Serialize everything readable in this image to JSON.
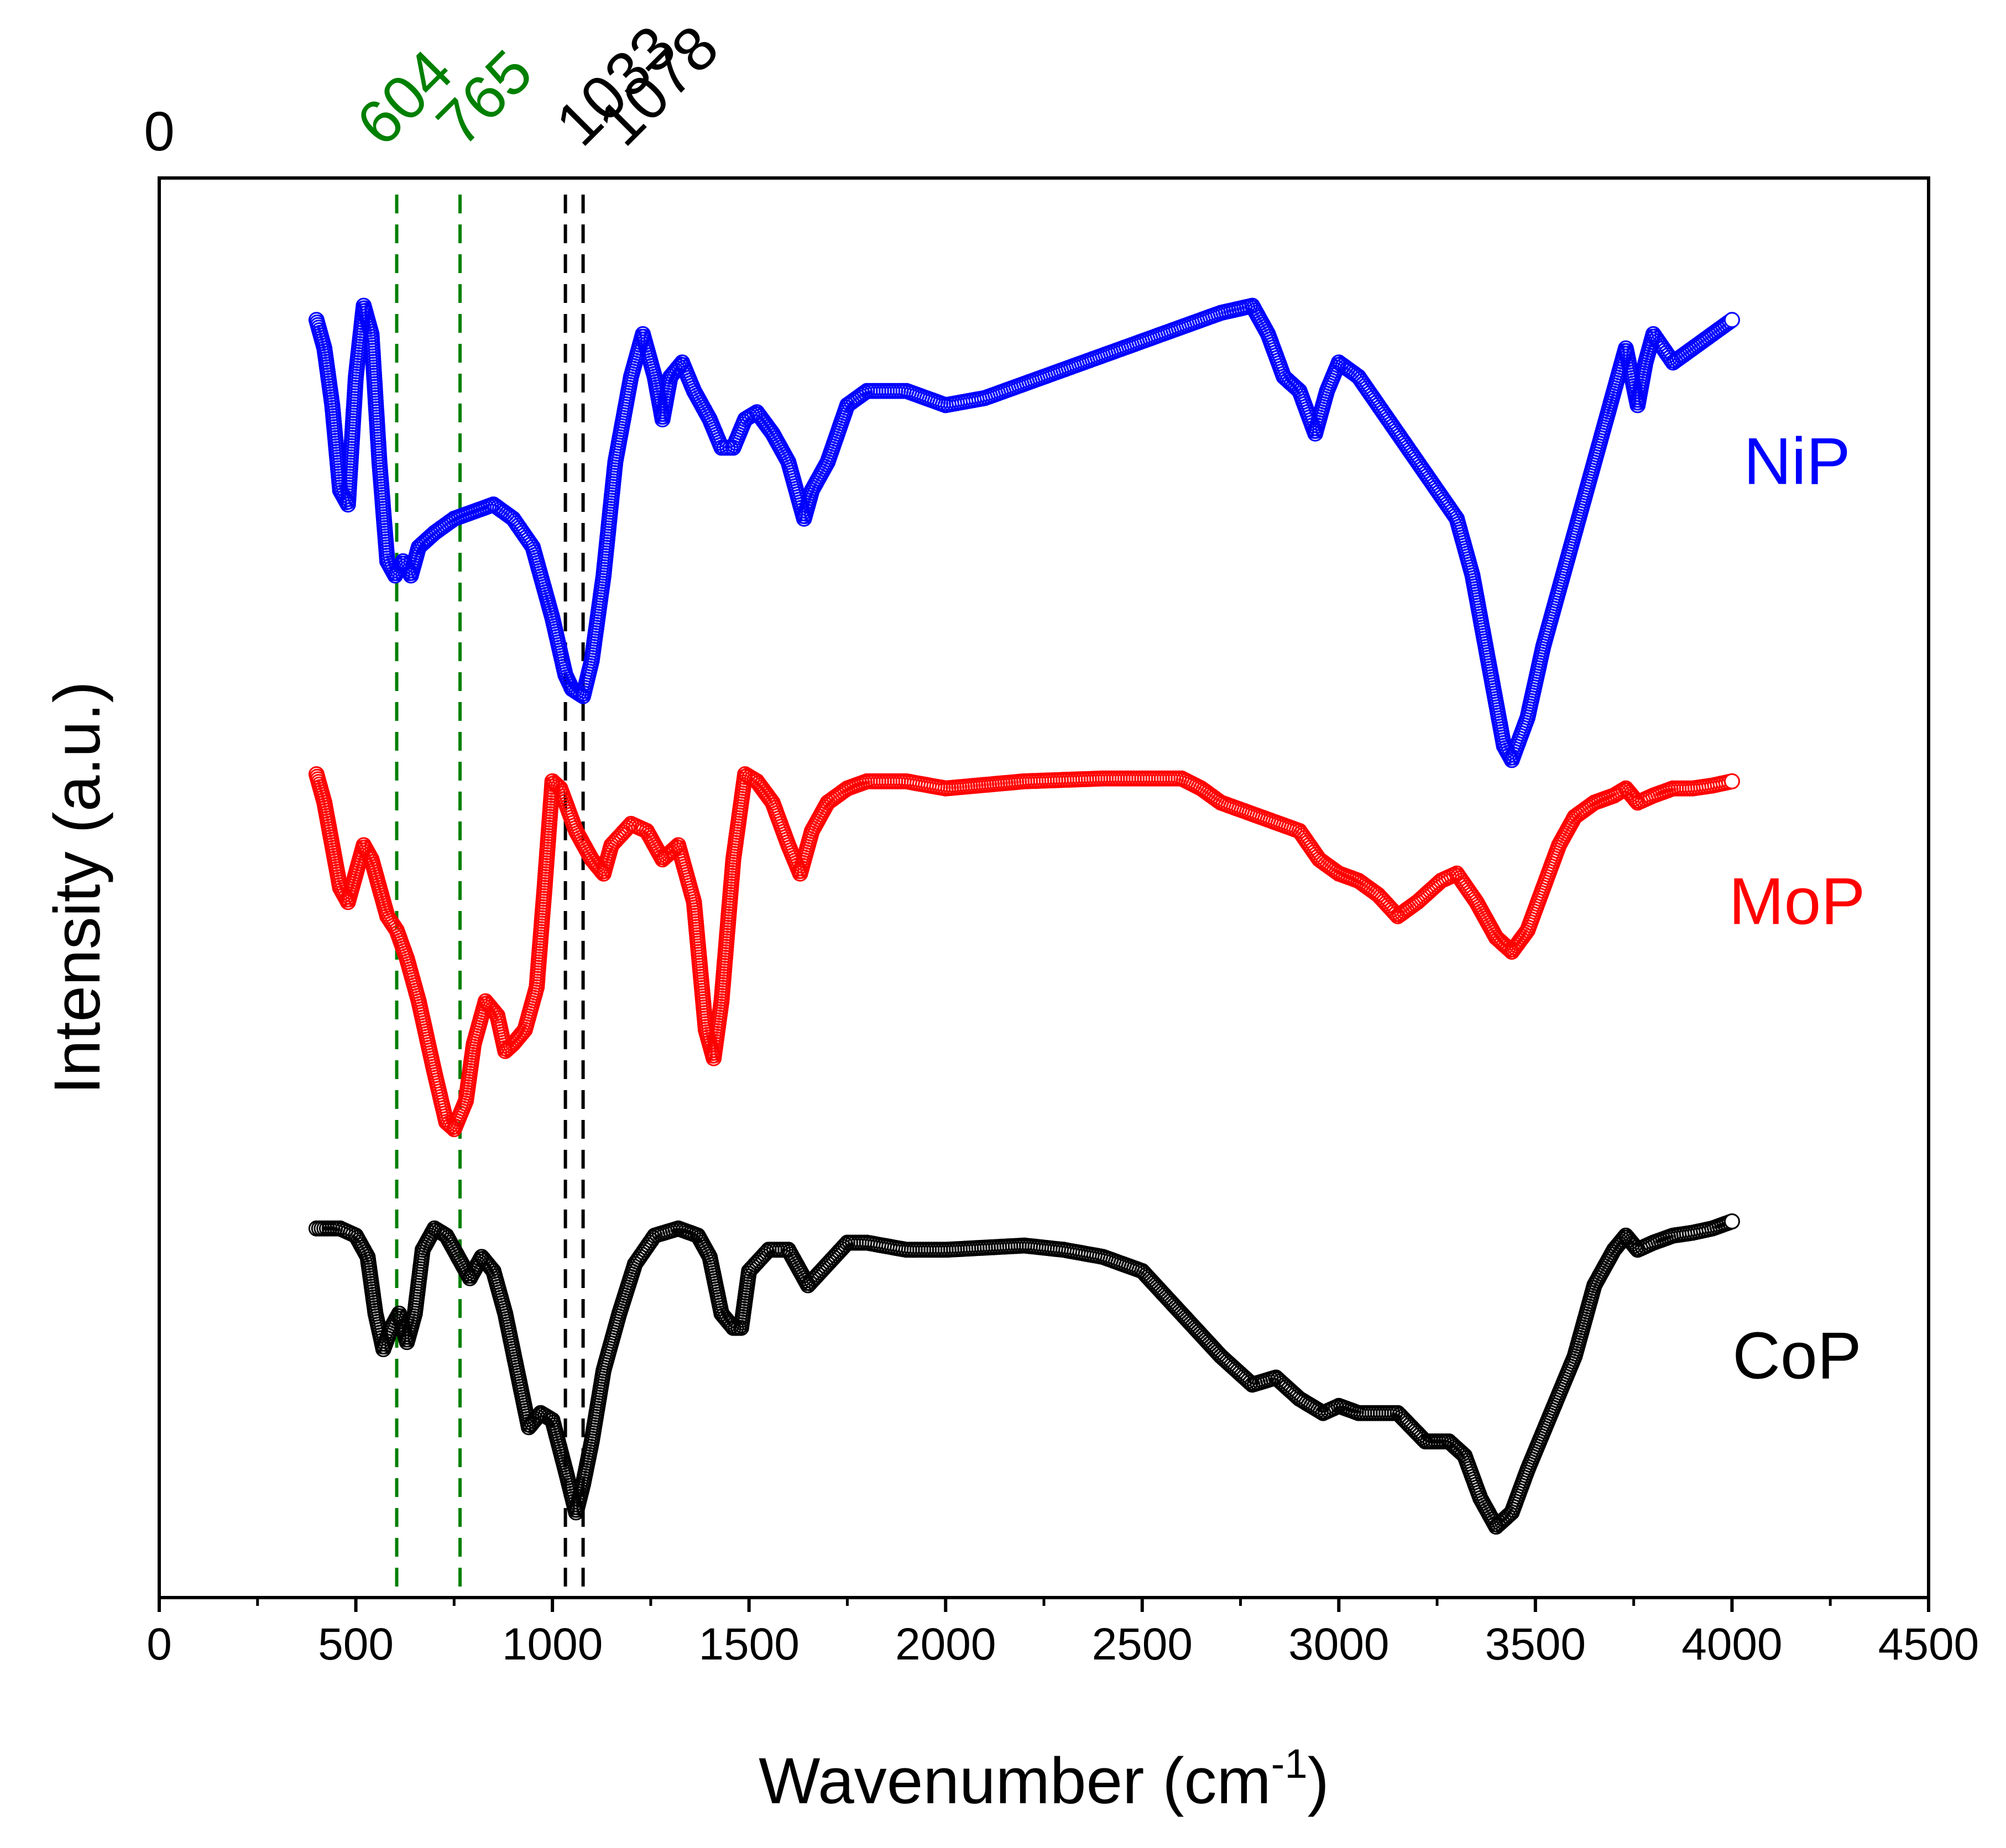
{
  "chart_data": {
    "type": "scatter",
    "title": "",
    "xlabel": "Wavenumber (cm",
    "xlabel_superscript": "-1",
    "xlabel_close": ")",
    "ylabel": "Intensity (a.u.)",
    "xlim": [
      0,
      4500
    ],
    "ylim": [
      0,
      1
    ],
    "xticks": [
      0,
      500,
      1000,
      1500,
      2000,
      2500,
      3000,
      3500,
      4000,
      4500
    ],
    "top_zero_label": "0",
    "grid": false,
    "legend": "labels placed at right of each curve",
    "series": [
      {
        "name": "NiP",
        "color": "#0000ff",
        "label_y": 0.8,
        "points": [
          [
            400,
            0.9
          ],
          [
            420,
            0.88
          ],
          [
            440,
            0.84
          ],
          [
            460,
            0.78
          ],
          [
            480,
            0.77
          ],
          [
            500,
            0.86
          ],
          [
            520,
            0.91
          ],
          [
            540,
            0.89
          ],
          [
            560,
            0.8
          ],
          [
            580,
            0.73
          ],
          [
            600,
            0.72
          ],
          [
            620,
            0.73
          ],
          [
            640,
            0.72
          ],
          [
            660,
            0.74
          ],
          [
            700,
            0.75
          ],
          [
            750,
            0.76
          ],
          [
            800,
            0.765
          ],
          [
            850,
            0.77
          ],
          [
            900,
            0.76
          ],
          [
            950,
            0.74
          ],
          [
            980,
            0.71
          ],
          [
            1000,
            0.69
          ],
          [
            1033,
            0.65
          ],
          [
            1050,
            0.64
          ],
          [
            1078,
            0.635
          ],
          [
            1100,
            0.66
          ],
          [
            1130,
            0.72
          ],
          [
            1160,
            0.8
          ],
          [
            1200,
            0.86
          ],
          [
            1230,
            0.89
          ],
          [
            1260,
            0.86
          ],
          [
            1280,
            0.83
          ],
          [
            1300,
            0.86
          ],
          [
            1330,
            0.87
          ],
          [
            1360,
            0.85
          ],
          [
            1400,
            0.83
          ],
          [
            1430,
            0.81
          ],
          [
            1460,
            0.81
          ],
          [
            1490,
            0.83
          ],
          [
            1520,
            0.835
          ],
          [
            1560,
            0.82
          ],
          [
            1600,
            0.8
          ],
          [
            1640,
            0.76
          ],
          [
            1660,
            0.78
          ],
          [
            1700,
            0.8
          ],
          [
            1750,
            0.84
          ],
          [
            1800,
            0.85
          ],
          [
            1900,
            0.85
          ],
          [
            2000,
            0.84
          ],
          [
            2100,
            0.845
          ],
          [
            2200,
            0.855
          ],
          [
            2300,
            0.865
          ],
          [
            2400,
            0.875
          ],
          [
            2500,
            0.885
          ],
          [
            2600,
            0.895
          ],
          [
            2700,
            0.905
          ],
          [
            2780,
            0.91
          ],
          [
            2820,
            0.89
          ],
          [
            2860,
            0.86
          ],
          [
            2900,
            0.85
          ],
          [
            2940,
            0.82
          ],
          [
            2970,
            0.85
          ],
          [
            3000,
            0.87
          ],
          [
            3050,
            0.86
          ],
          [
            3100,
            0.84
          ],
          [
            3150,
            0.82
          ],
          [
            3200,
            0.8
          ],
          [
            3250,
            0.78
          ],
          [
            3300,
            0.76
          ],
          [
            3340,
            0.72
          ],
          [
            3380,
            0.66
          ],
          [
            3420,
            0.6
          ],
          [
            3440,
            0.59
          ],
          [
            3480,
            0.62
          ],
          [
            3520,
            0.67
          ],
          [
            3560,
            0.71
          ],
          [
            3600,
            0.75
          ],
          [
            3640,
            0.79
          ],
          [
            3680,
            0.83
          ],
          [
            3700,
            0.85
          ],
          [
            3730,
            0.88
          ],
          [
            3760,
            0.84
          ],
          [
            3780,
            0.87
          ],
          [
            3800,
            0.89
          ],
          [
            3850,
            0.87
          ],
          [
            3900,
            0.88
          ],
          [
            3950,
            0.89
          ],
          [
            4000,
            0.9
          ]
        ]
      },
      {
        "name": "MoP",
        "color": "#ff0000",
        "label_y": 0.49,
        "points": [
          [
            400,
            0.58
          ],
          [
            420,
            0.56
          ],
          [
            440,
            0.53
          ],
          [
            460,
            0.5
          ],
          [
            480,
            0.49
          ],
          [
            500,
            0.51
          ],
          [
            520,
            0.53
          ],
          [
            540,
            0.52
          ],
          [
            560,
            0.5
          ],
          [
            580,
            0.48
          ],
          [
            604,
            0.47
          ],
          [
            630,
            0.45
          ],
          [
            660,
            0.42
          ],
          [
            700,
            0.37
          ],
          [
            730,
            0.335
          ],
          [
            750,
            0.33
          ],
          [
            780,
            0.35
          ],
          [
            800,
            0.39
          ],
          [
            830,
            0.42
          ],
          [
            860,
            0.41
          ],
          [
            880,
            0.385
          ],
          [
            900,
            0.39
          ],
          [
            930,
            0.4
          ],
          [
            960,
            0.43
          ],
          [
            980,
            0.5
          ],
          [
            1000,
            0.575
          ],
          [
            1020,
            0.57
          ],
          [
            1060,
            0.54
          ],
          [
            1100,
            0.52
          ],
          [
            1130,
            0.51
          ],
          [
            1150,
            0.53
          ],
          [
            1200,
            0.545
          ],
          [
            1240,
            0.54
          ],
          [
            1280,
            0.52
          ],
          [
            1320,
            0.53
          ],
          [
            1360,
            0.49
          ],
          [
            1390,
            0.4
          ],
          [
            1410,
            0.38
          ],
          [
            1430,
            0.42
          ],
          [
            1460,
            0.52
          ],
          [
            1490,
            0.58
          ],
          [
            1520,
            0.575
          ],
          [
            1560,
            0.56
          ],
          [
            1600,
            0.53
          ],
          [
            1630,
            0.51
          ],
          [
            1660,
            0.54
          ],
          [
            1700,
            0.56
          ],
          [
            1750,
            0.57
          ],
          [
            1800,
            0.575
          ],
          [
            1900,
            0.575
          ],
          [
            2000,
            0.57
          ],
          [
            2200,
            0.575
          ],
          [
            2400,
            0.577
          ],
          [
            2600,
            0.577
          ],
          [
            2650,
            0.57
          ],
          [
            2700,
            0.56
          ],
          [
            2800,
            0.55
          ],
          [
            2900,
            0.54
          ],
          [
            2950,
            0.52
          ],
          [
            3000,
            0.51
          ],
          [
            3050,
            0.505
          ],
          [
            3100,
            0.495
          ],
          [
            3150,
            0.48
          ],
          [
            3200,
            0.49
          ],
          [
            3260,
            0.505
          ],
          [
            3300,
            0.51
          ],
          [
            3350,
            0.49
          ],
          [
            3400,
            0.465
          ],
          [
            3440,
            0.455
          ],
          [
            3480,
            0.47
          ],
          [
            3520,
            0.5
          ],
          [
            3560,
            0.53
          ],
          [
            3600,
            0.55
          ],
          [
            3650,
            0.56
          ],
          [
            3700,
            0.565
          ],
          [
            3730,
            0.57
          ],
          [
            3760,
            0.56
          ],
          [
            3800,
            0.565
          ],
          [
            3850,
            0.57
          ],
          [
            3900,
            0.57
          ],
          [
            3950,
            0.572
          ],
          [
            4000,
            0.575
          ]
        ]
      },
      {
        "name": "CoP",
        "color": "#000000",
        "label_y": 0.17,
        "points": [
          [
            400,
            0.26
          ],
          [
            420,
            0.26
          ],
          [
            460,
            0.26
          ],
          [
            500,
            0.255
          ],
          [
            530,
            0.24
          ],
          [
            550,
            0.2
          ],
          [
            570,
            0.175
          ],
          [
            590,
            0.19
          ],
          [
            610,
            0.2
          ],
          [
            630,
            0.18
          ],
          [
            650,
            0.2
          ],
          [
            670,
            0.245
          ],
          [
            700,
            0.26
          ],
          [
            730,
            0.255
          ],
          [
            760,
            0.24
          ],
          [
            790,
            0.225
          ],
          [
            820,
            0.24
          ],
          [
            850,
            0.23
          ],
          [
            880,
            0.2
          ],
          [
            910,
            0.16
          ],
          [
            940,
            0.12
          ],
          [
            970,
            0.13
          ],
          [
            1000,
            0.125
          ],
          [
            1033,
            0.09
          ],
          [
            1060,
            0.06
          ],
          [
            1078,
            0.08
          ],
          [
            1100,
            0.11
          ],
          [
            1130,
            0.16
          ],
          [
            1170,
            0.2
          ],
          [
            1210,
            0.235
          ],
          [
            1260,
            0.255
          ],
          [
            1320,
            0.26
          ],
          [
            1370,
            0.255
          ],
          [
            1400,
            0.24
          ],
          [
            1430,
            0.2
          ],
          [
            1460,
            0.19
          ],
          [
            1480,
            0.19
          ],
          [
            1500,
            0.23
          ],
          [
            1550,
            0.245
          ],
          [
            1600,
            0.245
          ],
          [
            1650,
            0.22
          ],
          [
            1700,
            0.235
          ],
          [
            1750,
            0.25
          ],
          [
            1800,
            0.25
          ],
          [
            1900,
            0.245
          ],
          [
            2000,
            0.245
          ],
          [
            2200,
            0.248
          ],
          [
            2300,
            0.245
          ],
          [
            2400,
            0.24
          ],
          [
            2500,
            0.23
          ],
          [
            2600,
            0.2
          ],
          [
            2700,
            0.17
          ],
          [
            2780,
            0.15
          ],
          [
            2840,
            0.155
          ],
          [
            2900,
            0.14
          ],
          [
            2960,
            0.13
          ],
          [
            3000,
            0.135
          ],
          [
            3050,
            0.13
          ],
          [
            3100,
            0.13
          ],
          [
            3150,
            0.13
          ],
          [
            3220,
            0.11
          ],
          [
            3280,
            0.11
          ],
          [
            3320,
            0.1
          ],
          [
            3360,
            0.07
          ],
          [
            3400,
            0.05
          ],
          [
            3440,
            0.06
          ],
          [
            3480,
            0.09
          ],
          [
            3540,
            0.13
          ],
          [
            3600,
            0.17
          ],
          [
            3650,
            0.22
          ],
          [
            3700,
            0.245
          ],
          [
            3730,
            0.255
          ],
          [
            3760,
            0.245
          ],
          [
            3800,
            0.25
          ],
          [
            3850,
            0.255
          ],
          [
            3900,
            0.257
          ],
          [
            3950,
            0.26
          ],
          [
            4000,
            0.265
          ]
        ]
      }
    ],
    "annotations": [
      {
        "value": 604,
        "label": "604",
        "color": "#008000",
        "style": "dashed"
      },
      {
        "value": 765,
        "label": "765",
        "color": "#008000",
        "style": "dashed"
      },
      {
        "value": 1033,
        "label": "1033",
        "color": "#000000",
        "style": "dashed"
      },
      {
        "value": 1078,
        "label": "1078",
        "color": "#000000",
        "style": "dashed"
      }
    ]
  }
}
